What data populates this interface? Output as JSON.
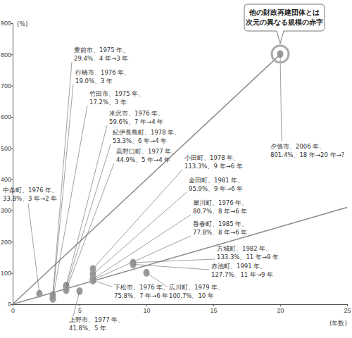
{
  "chart_data": {
    "type": "scatter",
    "x_label": "(年数)",
    "y_label": "(%)",
    "xlim": [
      0,
      25
    ],
    "xticks": [
      0,
      5,
      10,
      15,
      20,
      25
    ],
    "ylim": [
      0,
      900
    ],
    "yticks": [
      0,
      100,
      200,
      300,
      400,
      500,
      600,
      700,
      800,
      900
    ],
    "grid": false,
    "color": "#9a9a9a",
    "marker": "circle",
    "x": [
      3,
      3,
      3,
      4,
      4,
      4,
      2,
      6,
      6,
      6,
      6,
      9,
      9,
      10,
      6,
      5,
      20
    ],
    "values": [
      29.4,
      19.0,
      17.2,
      59.6,
      53.3,
      44.9,
      33.8,
      113.3,
      95.9,
      80.7,
      77.8,
      133.3,
      127.7,
      100.7,
      75.8,
      41.8,
      801.4
    ],
    "point_labels": [
      [
        "豊前市、1975 年、",
        "29.4%、4 年→3 年"
      ],
      [
        "行橋市、1976 年、",
        "19.0%、3 年"
      ],
      [
        "竹田市、1975 年、",
        "17.2%、3 年"
      ],
      [
        "米沢市、1976 年、",
        "59.6%、7 年→4 年"
      ],
      [
        "紀伊長島町、1978 年、",
        "53.3%、6 年→4 年"
      ],
      [
        "高野口町、1977 年、",
        "44.9%、5 年→4 年"
      ],
      [
        "中条町、1976 年、",
        "33.8%、3 年→2 年"
      ],
      [
        "小田町、1978 年、",
        "113.3%、9 年→6 年"
      ],
      [
        "金田町、1981 年、",
        "95.9%、9 年→6 年"
      ],
      [
        "犀川町、1976 年、",
        "80.7%、8 年→6 年"
      ],
      [
        "香春町、1985 年、",
        "77.8%、8 年→6 年"
      ],
      [
        "方城町、1982 年、",
        "133.3%、11 年→9 年"
      ],
      [
        "赤池町、1991 年、",
        "127.7%、11 年→9 年"
      ],
      [
        "広川町、1979 年、",
        "100.7%、10 年"
      ],
      [
        "下松市、1976 年、",
        "75.8%、7 年→6 年"
      ],
      [
        "上野市、1977 年、",
        "41.8%、5 年"
      ],
      [
        "夕張市、2006 年、",
        "801.4%、18 年→20 年→?"
      ]
    ],
    "lines": [
      {
        "x": [
          0,
          20
        ],
        "y": [
          0,
          800
        ],
        "color": "#8c8c8c"
      },
      {
        "x": [
          0,
          25
        ],
        "y": [
          0,
          310
        ],
        "color": "#8c8c8c"
      }
    ],
    "callout": [
      "他の財政再建団体とは",
      "次元の異なる規模の赤字"
    ]
  }
}
